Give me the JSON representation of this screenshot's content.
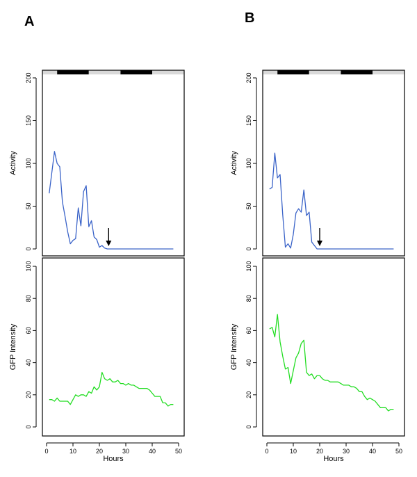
{
  "panels": [
    {
      "label": "A"
    },
    {
      "label": "B"
    }
  ],
  "colors": {
    "activity": "#3a63c8",
    "gfp": "#22dd22",
    "dark_bar": "#000000",
    "light_bar": "#d9d9d9",
    "arrow": "#000000"
  },
  "chart_data": [
    {
      "panel": "A",
      "subplot": "activity",
      "type": "line",
      "ylabel": "Activity",
      "xlim": [
        0,
        50
      ],
      "ylim": [
        0,
        200
      ],
      "yticks": [
        0,
        50,
        100,
        150,
        200
      ],
      "light_dark_bar": [
        {
          "start": 0,
          "end": 4,
          "phase": "light"
        },
        {
          "start": 4,
          "end": 16,
          "phase": "dark"
        },
        {
          "start": 16,
          "end": 28,
          "phase": "light"
        },
        {
          "start": 28,
          "end": 40,
          "phase": "dark"
        },
        {
          "start": 40,
          "end": 52,
          "phase": "light"
        }
      ],
      "arrow_x": 23.5,
      "x": [
        1,
        3,
        4,
        5,
        6,
        7,
        8,
        9,
        10,
        11,
        12,
        13,
        14,
        15,
        16,
        17,
        18,
        19,
        20,
        21,
        22,
        23,
        24,
        25,
        48
      ],
      "y": [
        65,
        114,
        100,
        96,
        55,
        38,
        20,
        6,
        10,
        12,
        48,
        27,
        67,
        74,
        26,
        33,
        14,
        11,
        2,
        4,
        1,
        0,
        0,
        0,
        0
      ]
    },
    {
      "panel": "A",
      "subplot": "gfp",
      "type": "line",
      "xlabel": "Hours",
      "ylabel": "GFP Intensity",
      "xlim": [
        0,
        50
      ],
      "ylim": [
        0,
        100
      ],
      "xticks": [
        0,
        10,
        20,
        30,
        40,
        50
      ],
      "yticks": [
        0,
        20,
        40,
        60,
        80,
        100
      ],
      "x": [
        1,
        2,
        3,
        4,
        5,
        6,
        7,
        8,
        9,
        10,
        11,
        12,
        13,
        14,
        15,
        16,
        17,
        18,
        19,
        20,
        21,
        22,
        23,
        24,
        25,
        26,
        27,
        28,
        29,
        30,
        31,
        32,
        33,
        34,
        35,
        36,
        37,
        38,
        39,
        40,
        41,
        42,
        43,
        44,
        45,
        46,
        47,
        48
      ],
      "y": [
        17,
        17,
        16,
        18,
        16,
        16,
        16,
        16,
        14,
        17,
        20,
        19,
        20,
        20,
        19,
        22,
        21,
        25,
        23,
        25,
        34,
        30,
        29,
        30,
        28,
        28,
        29,
        27,
        27,
        26,
        27,
        26,
        26,
        25,
        24,
        24,
        24,
        24,
        23,
        21,
        19,
        19,
        19,
        15,
        15,
        13,
        14,
        14
      ]
    },
    {
      "panel": "B",
      "subplot": "activity",
      "type": "line",
      "ylabel": "Activity",
      "xlim": [
        0,
        50
      ],
      "ylim": [
        0,
        200
      ],
      "yticks": [
        0,
        50,
        100,
        150,
        200
      ],
      "light_dark_bar": [
        {
          "start": 0,
          "end": 4,
          "phase": "light"
        },
        {
          "start": 4,
          "end": 16,
          "phase": "dark"
        },
        {
          "start": 16,
          "end": 28,
          "phase": "light"
        },
        {
          "start": 28,
          "end": 40,
          "phase": "dark"
        },
        {
          "start": 40,
          "end": 52,
          "phase": "light"
        }
      ],
      "arrow_x": 20,
      "x": [
        1,
        2,
        3,
        4,
        5,
        6,
        7,
        8,
        9,
        10,
        11,
        12,
        13,
        14,
        15,
        16,
        17,
        18,
        19,
        20,
        48
      ],
      "y": [
        70,
        72,
        112,
        83,
        87,
        40,
        2,
        6,
        1,
        17,
        42,
        47,
        43,
        69,
        39,
        43,
        8,
        4,
        0,
        0,
        0
      ]
    },
    {
      "panel": "B",
      "subplot": "gfp",
      "type": "line",
      "xlabel": "Hours",
      "ylabel": "GFP Intensity",
      "xlim": [
        0,
        50
      ],
      "ylim": [
        0,
        100
      ],
      "xticks": [
        0,
        10,
        20,
        30,
        40,
        50
      ],
      "yticks": [
        0,
        20,
        40,
        60,
        80,
        100
      ],
      "x": [
        1,
        2,
        3,
        4,
        5,
        6,
        7,
        8,
        9,
        10,
        11,
        12,
        13,
        14,
        15,
        16,
        17,
        18,
        19,
        20,
        21,
        22,
        23,
        24,
        25,
        26,
        27,
        28,
        29,
        30,
        31,
        32,
        33,
        34,
        35,
        36,
        37,
        38,
        39,
        40,
        41,
        42,
        43,
        44,
        45,
        46,
        47,
        48
      ],
      "y": [
        61,
        62,
        56,
        70,
        53,
        44,
        36,
        37,
        27,
        35,
        43,
        46,
        52,
        54,
        34,
        32,
        33,
        30,
        32,
        32,
        30,
        29,
        29,
        28,
        28,
        28,
        28,
        27,
        26,
        26,
        26,
        25,
        25,
        24,
        22,
        22,
        19,
        17,
        18,
        17,
        16,
        14,
        12,
        12,
        12,
        10,
        11,
        11
      ]
    }
  ]
}
